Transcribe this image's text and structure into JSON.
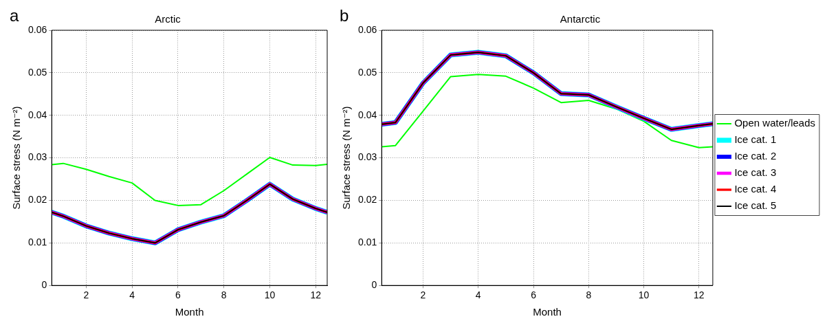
{
  "chart_data": [
    {
      "type": "line",
      "title": "Arctic",
      "annotations": [
        "a"
      ],
      "xlabel": "Month",
      "ylabel": "Surface stress (N m⁻²)",
      "x": [
        0.5,
        1,
        2,
        3,
        4,
        5,
        6,
        7,
        8,
        9,
        10,
        11,
        12,
        12.5
      ],
      "xlim": [
        0.5,
        12.5
      ],
      "xticks": [
        2,
        4,
        6,
        8,
        10,
        12
      ],
      "ylim": [
        0,
        0.06
      ],
      "yticks": [
        0,
        0.01,
        0.02,
        0.03,
        0.04,
        0.05,
        0.06
      ],
      "grid": true,
      "legend": false,
      "line_style": "solid",
      "series": [
        {
          "color": "#00ff00",
          "values": [
            0.0284,
            0.0287,
            0.0273,
            0.0256,
            0.0241,
            0.02,
            0.0188,
            0.019,
            0.0223,
            0.0262,
            0.0301,
            0.0283,
            0.0282,
            0.0285
          ]
        },
        {
          "color": "#00ffff",
          "values": [
            0.0172,
            0.0163,
            0.014,
            0.0123,
            0.011,
            0.01,
            0.0131,
            0.0149,
            0.0164,
            0.02,
            0.0238,
            0.0203,
            0.0181,
            0.0172
          ]
        },
        {
          "color": "#0000ff",
          "values": [
            0.0172,
            0.0163,
            0.014,
            0.0123,
            0.011,
            0.01,
            0.0131,
            0.0149,
            0.0164,
            0.02,
            0.0238,
            0.0203,
            0.0181,
            0.0172
          ]
        },
        {
          "color": "#ff00ff",
          "values": [
            0.0172,
            0.0163,
            0.014,
            0.0123,
            0.011,
            0.01,
            0.0131,
            0.0149,
            0.0164,
            0.02,
            0.0238,
            0.0203,
            0.0181,
            0.0172
          ]
        },
        {
          "color": "#ff0000",
          "values": [
            0.0172,
            0.0163,
            0.014,
            0.0123,
            0.011,
            0.01,
            0.0131,
            0.0149,
            0.0164,
            0.02,
            0.0238,
            0.0203,
            0.0181,
            0.0172
          ]
        },
        {
          "color": "#000000",
          "values": [
            0.0172,
            0.0163,
            0.014,
            0.0123,
            0.011,
            0.01,
            0.0131,
            0.0149,
            0.0164,
            0.02,
            0.0238,
            0.0203,
            0.0181,
            0.0172
          ]
        }
      ]
    },
    {
      "type": "line",
      "title": "Antarctic",
      "annotations": [
        "b"
      ],
      "xlabel": "Month",
      "ylabel": "Surface stress (N m⁻²)",
      "x": [
        0.5,
        1,
        2,
        3,
        4,
        5,
        6,
        7,
        8,
        9,
        10,
        11,
        12,
        12.5
      ],
      "xlim": [
        0.5,
        12.5
      ],
      "xticks": [
        2,
        4,
        6,
        8,
        10,
        12
      ],
      "ylim": [
        0,
        0.06
      ],
      "yticks": [
        0,
        0.01,
        0.02,
        0.03,
        0.04,
        0.05,
        0.06
      ],
      "grid": true,
      "legend": "right",
      "line_style": "solid",
      "series": [
        {
          "name": "Open water/leads",
          "color": "#00ff00",
          "values": [
            0.0326,
            0.0329,
            0.041,
            0.0491,
            0.0496,
            0.0492,
            0.0464,
            0.043,
            0.0435,
            0.0415,
            0.0386,
            0.0341,
            0.0324,
            0.0326
          ]
        },
        {
          "name": "Ice cat. 1",
          "color": "#00ffff",
          "values": [
            0.0379,
            0.0383,
            0.0476,
            0.0542,
            0.0548,
            0.054,
            0.05,
            0.0451,
            0.0448,
            0.042,
            0.0393,
            0.0367,
            0.0376,
            0.038
          ]
        },
        {
          "name": "Ice cat. 2",
          "color": "#0000ff",
          "values": [
            0.0379,
            0.0383,
            0.0476,
            0.0542,
            0.0548,
            0.054,
            0.05,
            0.0451,
            0.0448,
            0.042,
            0.0393,
            0.0367,
            0.0376,
            0.038
          ]
        },
        {
          "name": "Ice cat. 3",
          "color": "#ff00ff",
          "values": [
            0.0379,
            0.0383,
            0.0476,
            0.0542,
            0.0548,
            0.054,
            0.05,
            0.0451,
            0.0448,
            0.042,
            0.0393,
            0.0367,
            0.0376,
            0.038
          ]
        },
        {
          "name": "Ice cat. 4",
          "color": "#ff0000",
          "values": [
            0.0379,
            0.0383,
            0.0476,
            0.0542,
            0.0548,
            0.054,
            0.05,
            0.0451,
            0.0448,
            0.042,
            0.0393,
            0.0367,
            0.0376,
            0.038
          ]
        },
        {
          "name": "Ice cat. 5",
          "color": "#000000",
          "values": [
            0.0379,
            0.0383,
            0.0476,
            0.0542,
            0.0548,
            0.054,
            0.05,
            0.0451,
            0.0448,
            0.042,
            0.0393,
            0.0367,
            0.0376,
            0.038
          ]
        }
      ]
    }
  ]
}
